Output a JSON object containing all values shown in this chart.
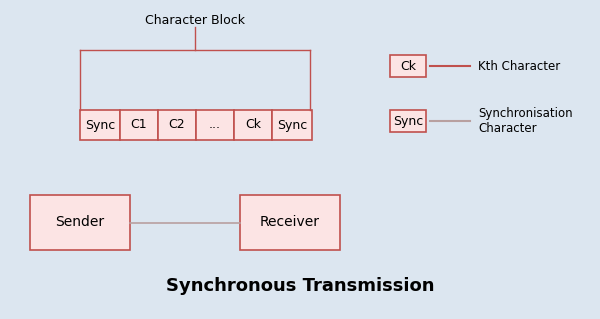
{
  "bg_color": "#dce6f0",
  "box_fill": "#fce4e4",
  "box_edge": "#c0504d",
  "title": "Synchronous Transmission",
  "title_fontsize": 13,
  "char_block_label": "Character Block",
  "cells": [
    "Sync",
    "C1",
    "C2",
    "...",
    "Ck",
    "Sync"
  ],
  "legend_items": [
    {
      "label": "Kth Character",
      "box_text": "Ck",
      "line_color": "#c0504d"
    },
    {
      "label": "Synchronisation\nCharacter",
      "box_text": "Sync",
      "line_color": "#b8a0a0"
    }
  ],
  "sender_label": "Sender",
  "receiver_label": "Receiver"
}
